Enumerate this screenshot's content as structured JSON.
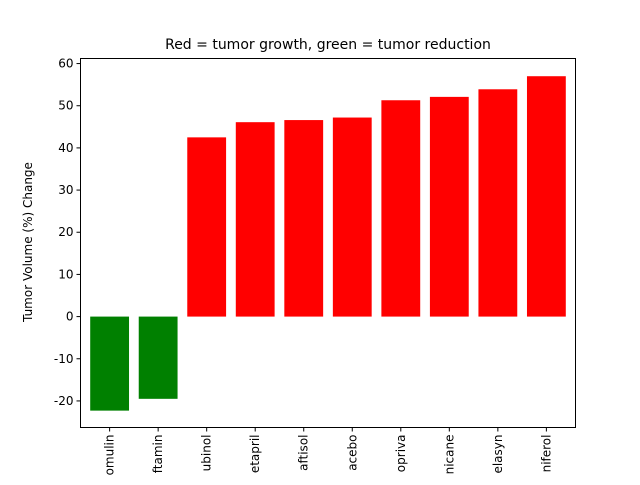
{
  "chart_data": {
    "type": "bar",
    "title": "Red = tumor growth, green = tumor reduction",
    "xlabel": "",
    "ylabel": "Tumor Volume (%) Change",
    "categories": [
      "omulin",
      "ftamin",
      "ubinol",
      "etapril",
      "aftisol",
      "acebo",
      "opriva",
      "nicane",
      "elasyn",
      "niferol"
    ],
    "values": [
      -22.3,
      -19.5,
      42.5,
      46.1,
      46.6,
      47.2,
      51.3,
      52.1,
      53.9,
      57.0
    ],
    "ylim": [
      -26.3,
      61.2
    ],
    "yticks": [
      -20,
      -10,
      0,
      10,
      20,
      30,
      40,
      50,
      60
    ],
    "grid": false,
    "colors": {
      "growth": "#ff0000",
      "reduction": "#008000"
    }
  }
}
